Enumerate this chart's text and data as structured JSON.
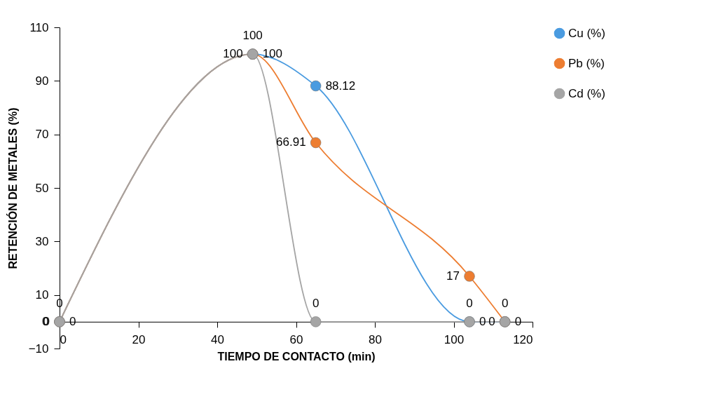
{
  "chart_data": {
    "type": "line",
    "xlabel": "TIEMPO DE CONTACTO (min)",
    "ylabel": "RETENCIÓN DE  METALES (%)",
    "x": [
      0,
      49,
      65,
      104,
      113
    ],
    "series": [
      {
        "name": "Cu (%)",
        "color": "#4a9be0",
        "values": [
          0,
          100,
          88.12,
          0,
          0
        ]
      },
      {
        "name": "Pb (%)",
        "color": "#ed7d31",
        "values": [
          0,
          100,
          66.91,
          17,
          0
        ]
      },
      {
        "name": "Cd (%)",
        "color": "#a5a5a5",
        "values": [
          0,
          100,
          0,
          0,
          0
        ]
      }
    ],
    "xlim": [
      0,
      120
    ],
    "xticks": [
      0,
      20,
      40,
      60,
      80,
      100,
      120
    ],
    "ylim": [
      -10,
      110
    ],
    "yticks": [
      -10,
      0,
      10,
      30,
      50,
      70,
      90,
      110
    ],
    "grid": false,
    "legend": "right",
    "marker": "circle",
    "data_labels": true
  }
}
